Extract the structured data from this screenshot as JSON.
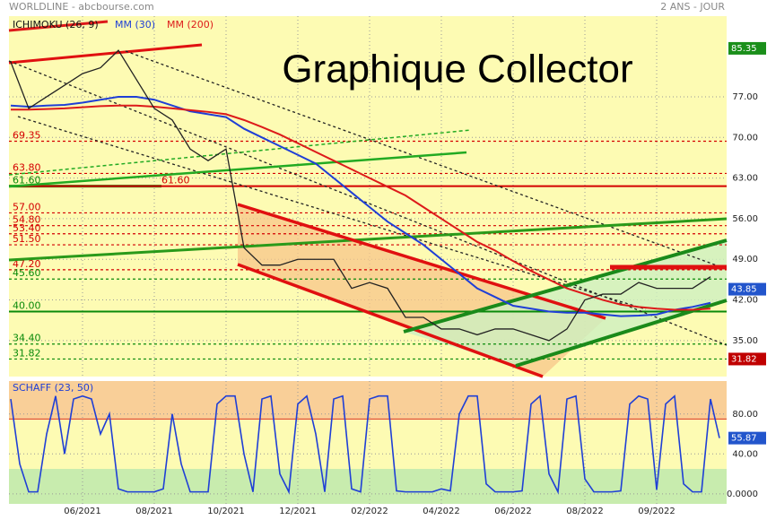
{
  "chart_data": [
    {
      "type": "line",
      "source": "WORLDLINE - abcbourse.com",
      "period": "2 ANS - JOUR",
      "indicator_label": "ICHIMOKU (26, 9)",
      "title": "Graphique Collector",
      "categories": [
        null,
        null,
        null,
        null,
        "06/2021",
        null,
        null,
        null,
        "08/2021",
        null,
        null,
        null,
        "10/2021",
        null,
        null,
        null,
        "12/2021",
        null,
        null,
        null,
        "02/2022",
        null,
        null,
        null,
        "04/2022",
        null,
        null,
        null,
        "06/2022",
        null,
        null,
        null,
        "08/2022",
        null,
        null,
        null,
        "09/2022",
        null,
        null,
        null
      ],
      "values": [
        83,
        75,
        77,
        79,
        81,
        82,
        85,
        80,
        75,
        73,
        68,
        66,
        68,
        51,
        48,
        48,
        49,
        49,
        49,
        44,
        45,
        44,
        39,
        39,
        37,
        37,
        36,
        37,
        37,
        36,
        35,
        37,
        42,
        43,
        43,
        45,
        44,
        44,
        44,
        46
      ],
      "color": "#222222",
      "series": [
        {
          "name": "MM (30)",
          "color": "#1f3fd6",
          "values": [
            75.5,
            75.3,
            75.5,
            75.6,
            76,
            76.5,
            77,
            77,
            76.5,
            75.5,
            74.5,
            74,
            73.5,
            71.5,
            70,
            68.5,
            67,
            65.5,
            63,
            60.5,
            58,
            55.5,
            53.5,
            51.5,
            49,
            46.5,
            44,
            42.5,
            41,
            40.5,
            40,
            39.8,
            39.8,
            39.5,
            39.2,
            39.3,
            39.5,
            40.3,
            40.8,
            41.5
          ]
        },
        {
          "name": "MM (200)",
          "color": "#dd1a1a",
          "values": [
            74.8,
            74.8,
            74.9,
            75,
            75.2,
            75.4,
            75.5,
            75.5,
            75.3,
            75,
            74.7,
            74.4,
            74,
            73,
            71.8,
            70.5,
            69,
            67.5,
            66,
            64.5,
            63,
            61.5,
            60,
            58,
            56,
            54,
            52,
            50.5,
            48.7,
            47,
            45.5,
            44,
            43,
            42,
            41.2,
            40.8,
            40.5,
            40.3,
            40.3,
            40.5
          ]
        }
      ],
      "ylim": [
        28.8,
        90.9
      ],
      "yticks": [
        {
          "value": 77,
          "label": "77.00"
        },
        {
          "value": 70,
          "label": "70.00"
        },
        {
          "value": 63,
          "label": "63.00"
        },
        {
          "value": 56,
          "label": "56.00"
        },
        {
          "value": 49,
          "label": "49.00"
        },
        {
          "value": 42,
          "label": "42.00"
        },
        {
          "value": 35,
          "label": "35.00"
        }
      ],
      "grid": true,
      "levels": [
        {
          "value": 69.35,
          "label": "69.35",
          "color": "#d40000",
          "dash": true
        },
        {
          "value": 63.8,
          "label": "63.80",
          "color": "#d40000",
          "dash": true
        },
        {
          "value": 61.6,
          "label": "61.60",
          "color": "#0a8a0a",
          "dash": false
        },
        {
          "value": 61.6,
          "label": "61.60",
          "color": "#d40000",
          "dash": false
        },
        {
          "value": 57,
          "label": "57.00",
          "color": "#d40000",
          "dash": true
        },
        {
          "value": 54.8,
          "label": "54.80",
          "color": "#d40000",
          "dash": true
        },
        {
          "value": 53.4,
          "label": "53.40",
          "color": "#d40000",
          "dash": true
        },
        {
          "value": 51.5,
          "label": "51.50",
          "color": "#d40000",
          "dash": true
        },
        {
          "value": 47.2,
          "label": "47.20",
          "color": "#d40000",
          "dash": true
        },
        {
          "value": 45.6,
          "label": "45.60",
          "color": "#0a8a0a",
          "dash": true
        },
        {
          "value": 40,
          "label": "40.00",
          "color": "#0a8a0a",
          "dash": false
        },
        {
          "value": 34.4,
          "label": "34.40",
          "color": "#0a8a0a",
          "dash": true
        },
        {
          "value": 31.82,
          "label": "31.82",
          "color": "#0a8a0a",
          "dash": true
        }
      ],
      "markers": [
        {
          "value": 85.35,
          "label": "85.35",
          "color": "#1a8f1a"
        },
        {
          "value": 43.85,
          "label": "43.85",
          "color": "#2255cc"
        },
        {
          "value": 31.82,
          "label": "31.82",
          "color": "#c00000"
        }
      ]
    },
    {
      "type": "line",
      "title": "SCHAFF (23, 50)",
      "color": "#1f3fd6",
      "values": [
        95,
        30,
        2,
        2,
        60,
        98,
        40,
        95,
        98,
        95,
        60,
        80,
        5,
        2,
        2,
        2,
        2,
        5,
        80,
        30,
        2,
        2,
        2,
        90,
        98,
        98,
        40,
        2,
        95,
        98,
        20,
        2,
        90,
        98,
        60,
        2,
        95,
        98,
        5,
        2,
        95,
        98,
        98,
        3,
        2,
        2,
        2,
        2,
        5,
        3,
        80,
        98,
        98,
        10,
        2,
        2,
        2,
        3,
        90,
        98,
        20,
        2,
        95,
        98,
        15,
        2,
        2,
        2,
        3,
        90,
        98,
        95,
        4,
        90,
        98,
        10,
        2,
        2,
        95,
        55.87
      ],
      "ylim": [
        -10,
        113
      ],
      "yticks": [
        {
          "value": 80,
          "label": "80.00"
        },
        {
          "value": 40,
          "label": "40.00"
        },
        {
          "value": 0,
          "label": "0.0000"
        }
      ],
      "zones": [
        75,
        25
      ],
      "marker": {
        "value": 55.87,
        "label": "55.87",
        "color": "#2255cc"
      }
    }
  ]
}
